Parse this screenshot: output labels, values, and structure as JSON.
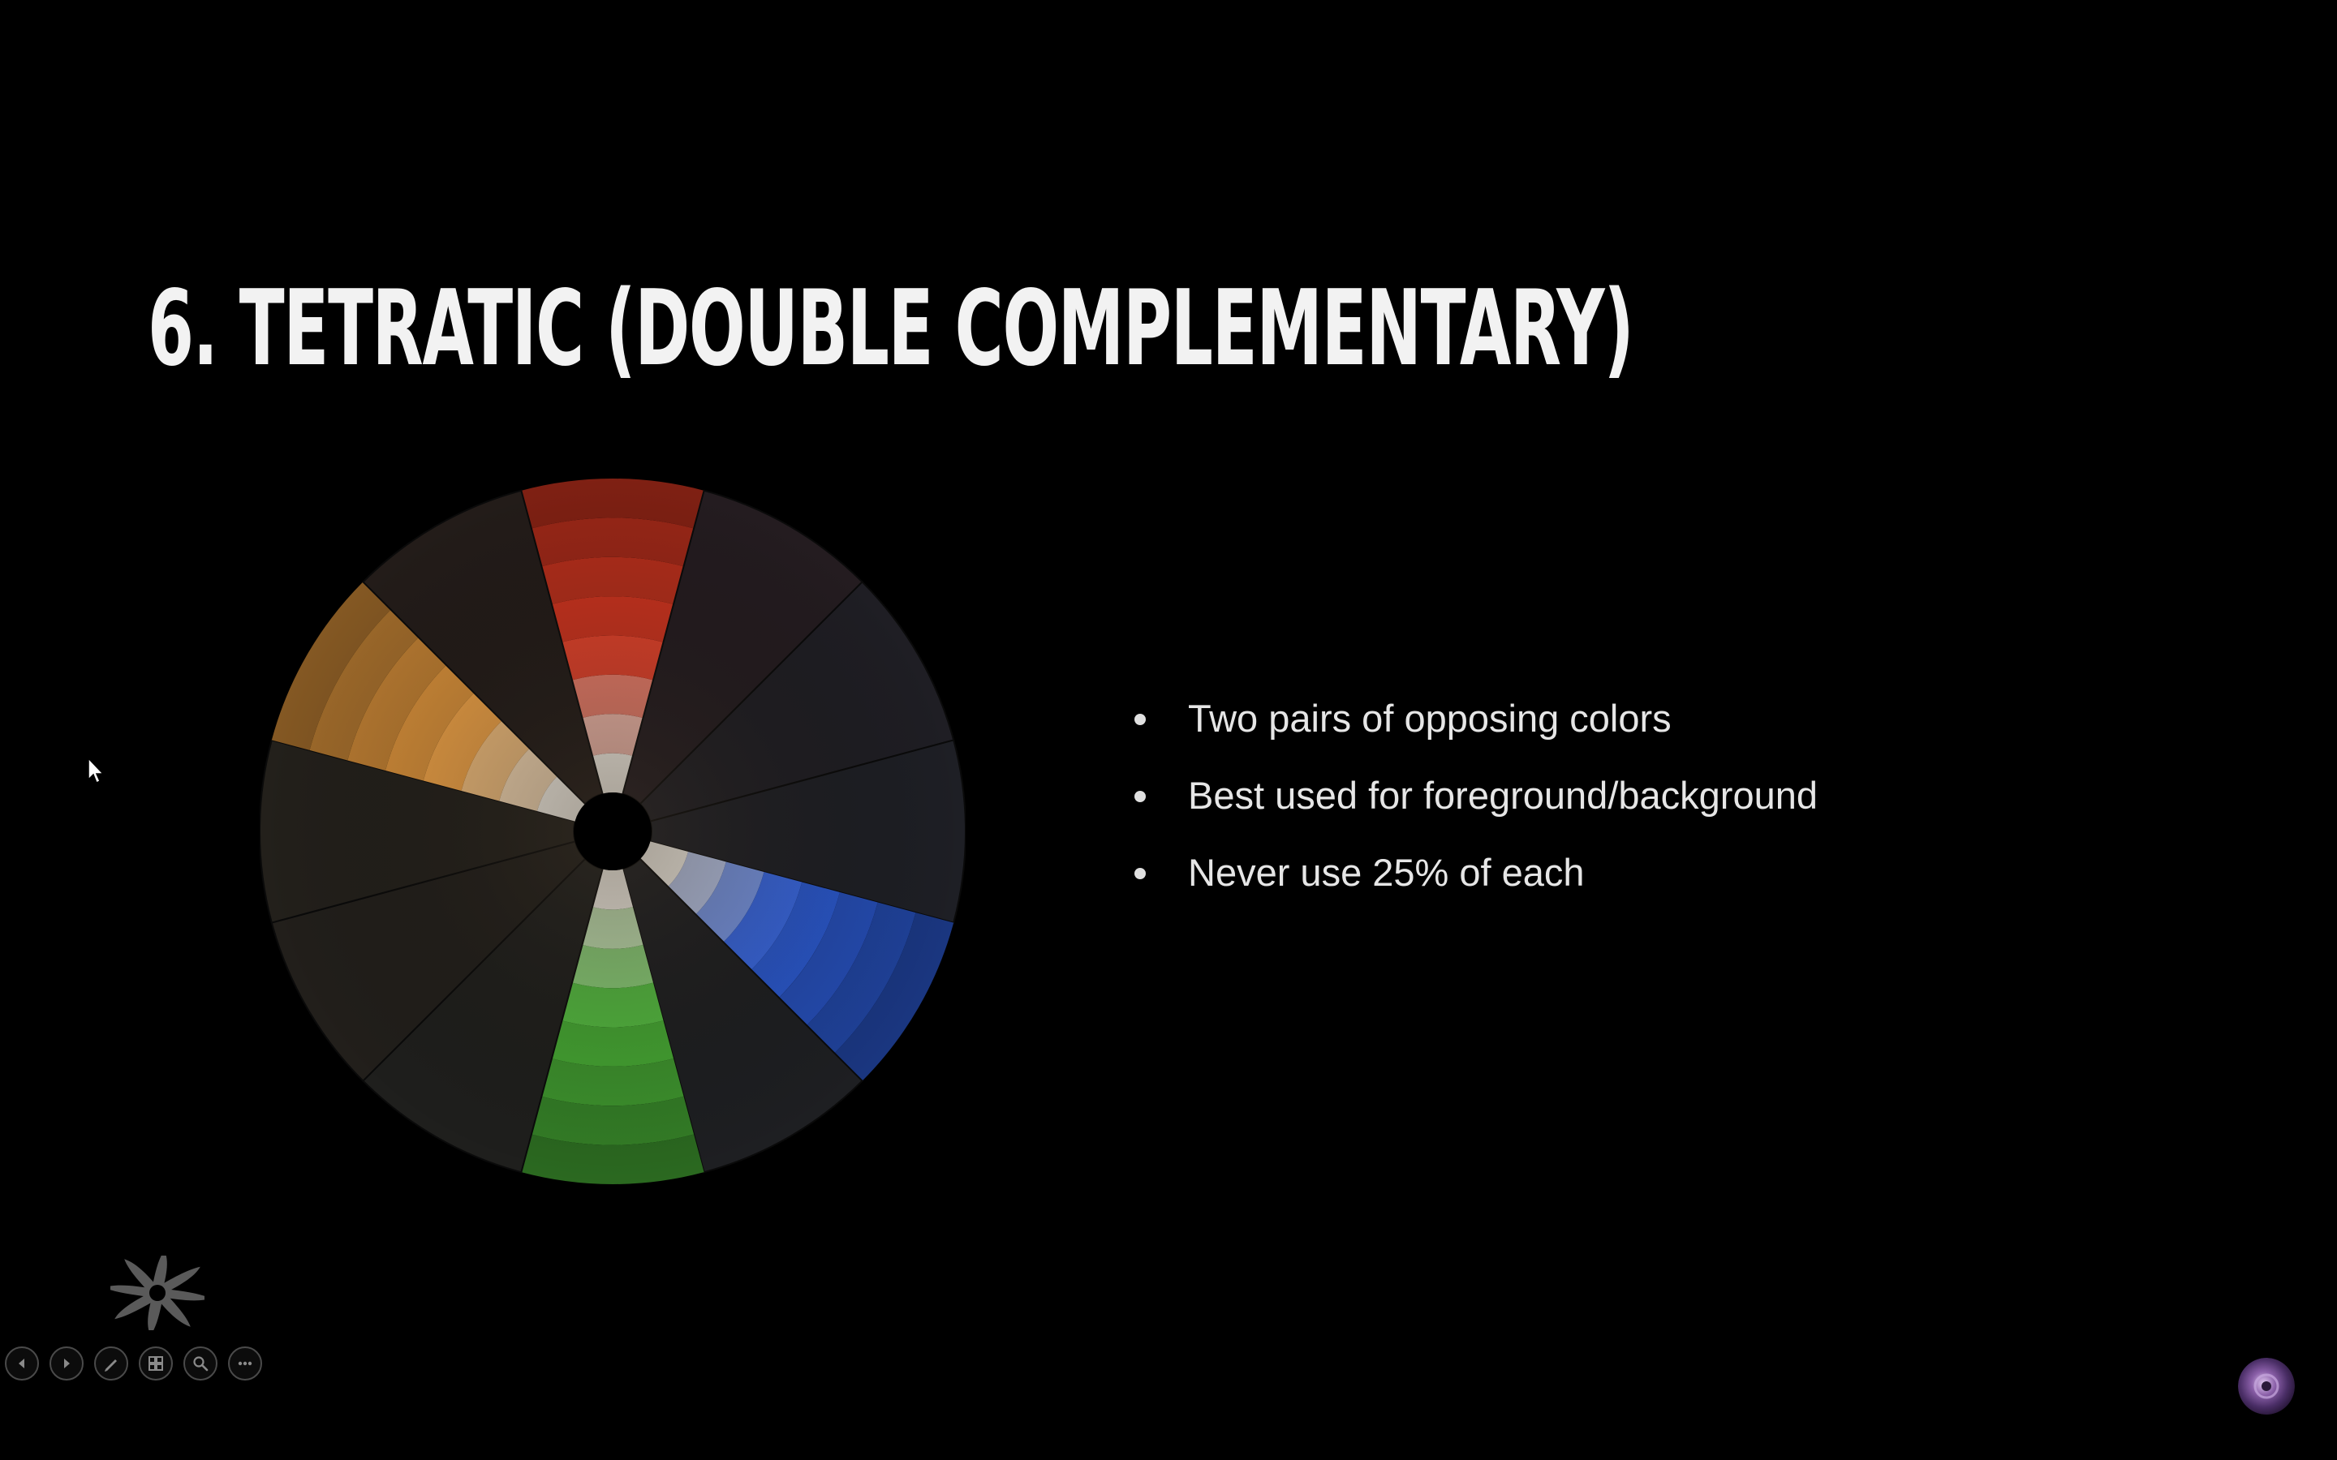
{
  "slide": {
    "title": "6. Tetratic (Double Complementary)",
    "bullets": [
      "Two pairs of opposing colors",
      "Best used for foreground/background",
      "Never use 25% of each"
    ]
  },
  "color_wheel": {
    "highlighted_colors": {
      "red": "#e63a22",
      "orange": "#f0a040",
      "blue": "#2f63e8",
      "green": "#4fbf3a"
    },
    "muted_background": "#1e1e1e"
  },
  "presenter_toolbar": {
    "buttons": [
      {
        "icon": "previous-slide-icon"
      },
      {
        "icon": "next-slide-icon"
      },
      {
        "icon": "pen-icon"
      },
      {
        "icon": "see-all-slides-icon"
      },
      {
        "icon": "zoom-icon"
      },
      {
        "icon": "more-options-icon"
      }
    ]
  },
  "avatar": {
    "icon": "user-avatar-icon"
  }
}
